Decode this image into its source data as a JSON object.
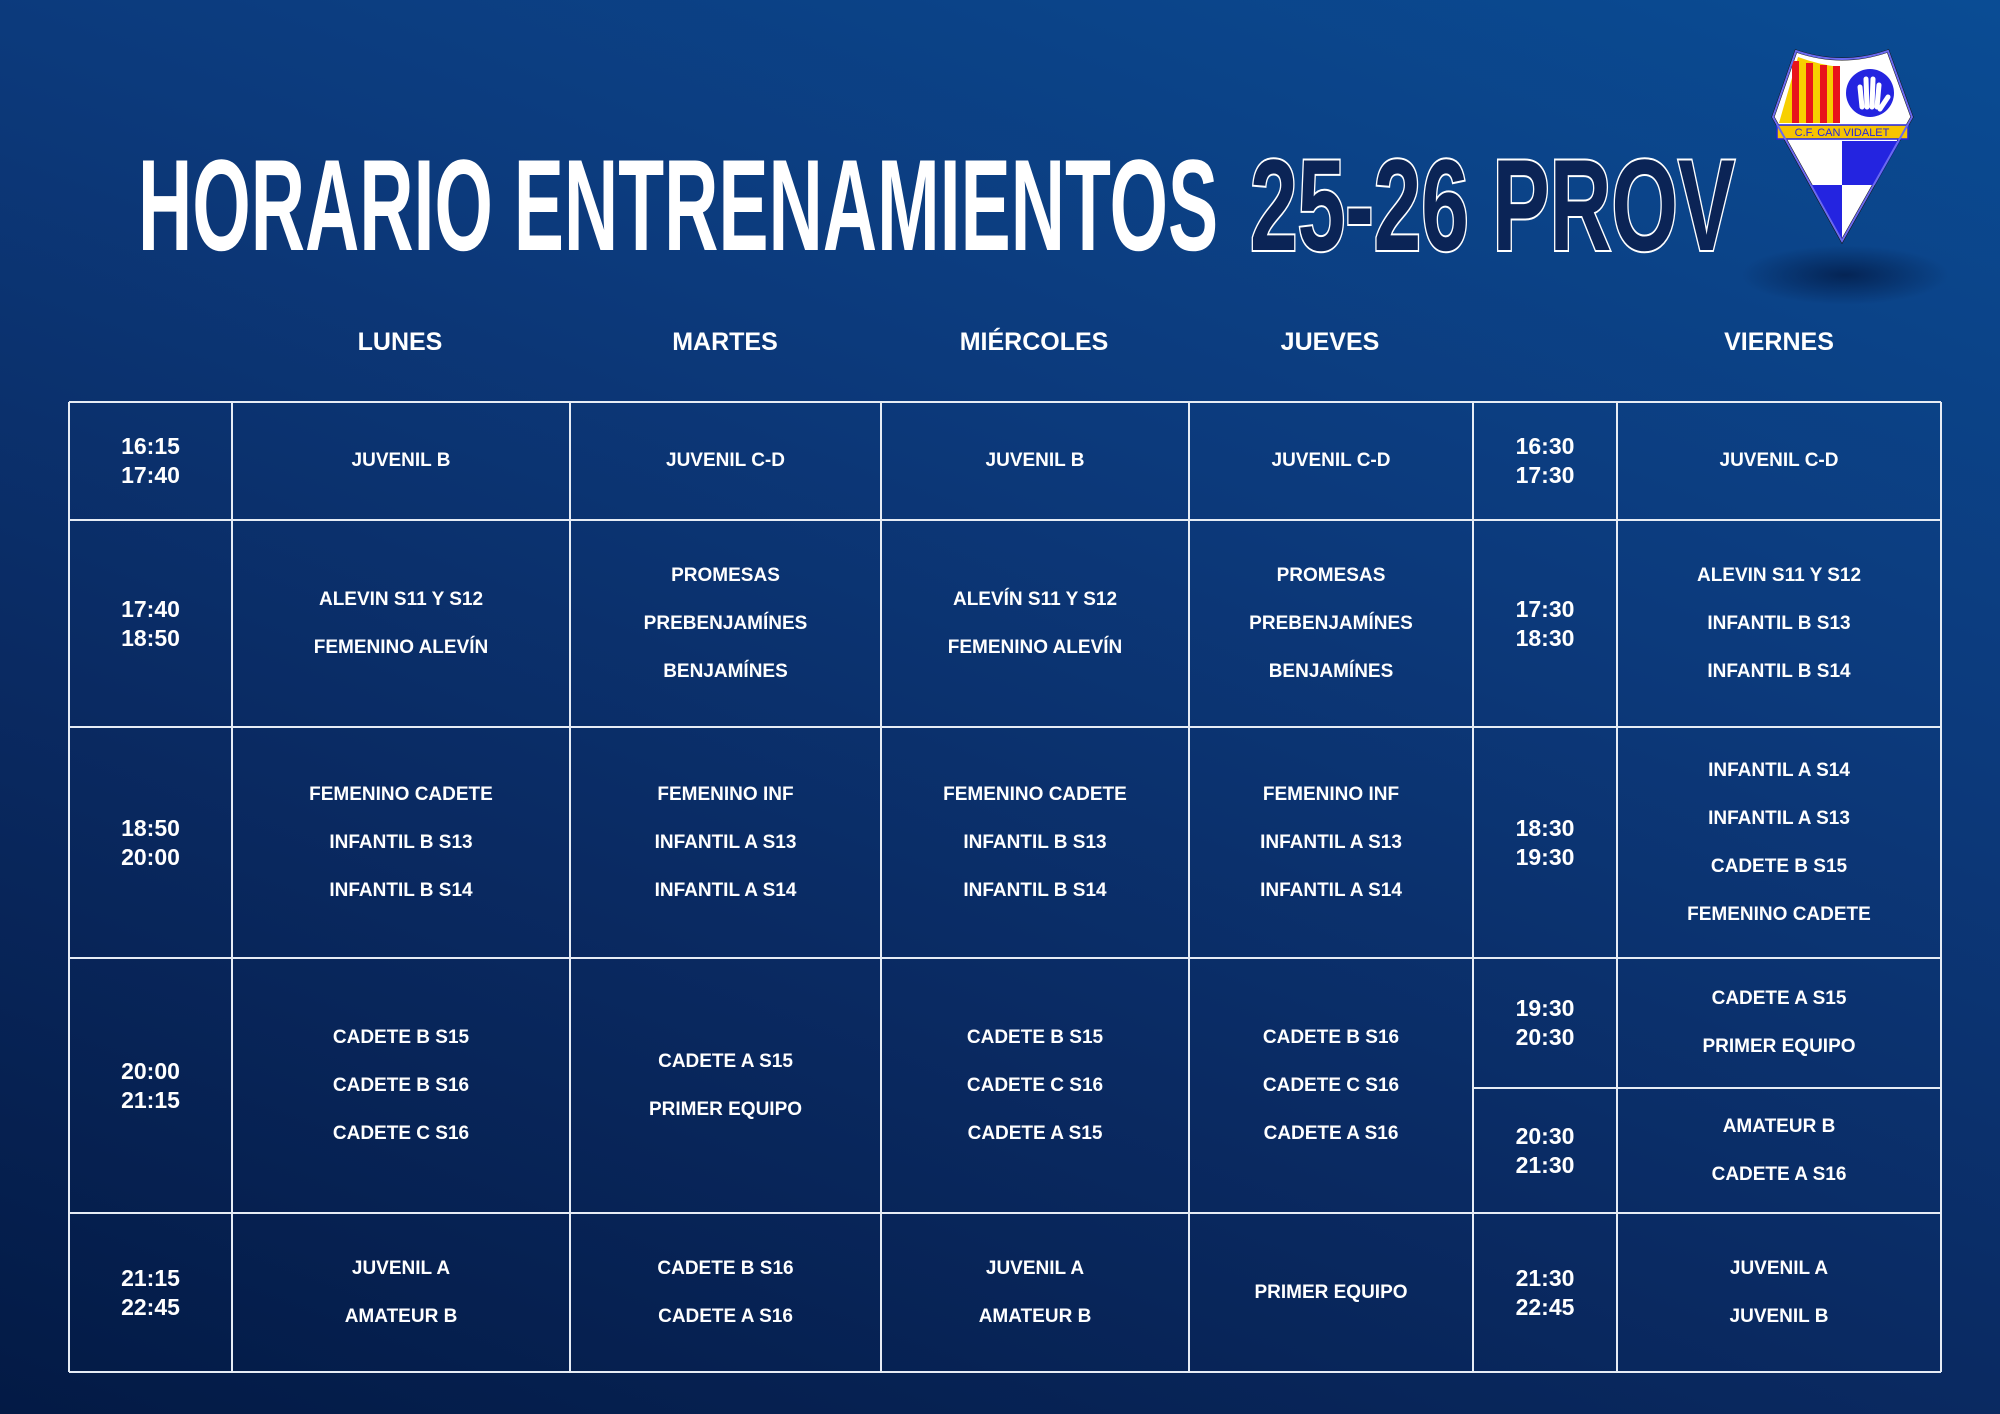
{
  "title": {
    "filled": "HORARIO ENTRENAMIENTOS",
    "outlined": "25-26 PROV"
  },
  "logo": {
    "text": "C.F. CAN VIDALET"
  },
  "colors": {
    "background_dark": "#031a45",
    "background_light": "#0a4c94",
    "title_outline_fill": "#0b2456",
    "grid_line": "#e6ecf5"
  },
  "days": [
    "LUNES",
    "MARTES",
    "MIÉRCOLES",
    "JUEVES",
    "VIERNES"
  ],
  "rows": [
    {
      "time": [
        "16:15",
        "17:40"
      ],
      "lunes": [
        "JUVENIL B"
      ],
      "martes": [
        "JUVENIL C-D"
      ],
      "miercoles": [
        "JUVENIL B"
      ],
      "jueves": [
        "JUVENIL C-D"
      ]
    },
    {
      "time": [
        "17:40",
        "18:50"
      ],
      "lunes": [
        "ALEVIN S11 Y S12",
        "FEMENINO ALEVÍN"
      ],
      "martes": [
        "PROMESAS",
        "PREBENJAMÍNES",
        "BENJAMÍNES"
      ],
      "miercoles": [
        "ALEVÍN S11 Y S12",
        "FEMENINO ALEVÍN"
      ],
      "jueves": [
        "PROMESAS",
        "PREBENJAMÍNES",
        "BENJAMÍNES"
      ]
    },
    {
      "time": [
        "18:50",
        "20:00"
      ],
      "lunes": [
        "FEMENINO CADETE",
        "INFANTIL B S13",
        "INFANTIL B S14"
      ],
      "martes": [
        "FEMENINO INF",
        "INFANTIL A S13",
        "INFANTIL A S14"
      ],
      "miercoles": [
        "FEMENINO CADETE",
        "INFANTIL B S13",
        "INFANTIL B S14"
      ],
      "jueves": [
        "FEMENINO INF",
        "INFANTIL A S13",
        "INFANTIL A S14"
      ]
    },
    {
      "time": [
        "20:00",
        "21:15"
      ],
      "lunes": [
        "CADETE B S15",
        "CADETE B S16",
        "CADETE C S16"
      ],
      "martes": [
        "CADETE A S15",
        "PRIMER EQUIPO"
      ],
      "miercoles": [
        "CADETE B S15",
        "CADETE C S16",
        "CADETE A S15"
      ],
      "jueves": [
        "CADETE B S16",
        "CADETE C S16",
        "CADETE A S16"
      ]
    },
    {
      "time": [
        "21:15",
        "22:45"
      ],
      "lunes": [
        "JUVENIL A",
        "AMATEUR B"
      ],
      "martes": [
        "CADETE B S16",
        "CADETE A S16"
      ],
      "miercoles": [
        "JUVENIL A",
        "AMATEUR B"
      ],
      "jueves": [
        "PRIMER EQUIPO"
      ]
    }
  ],
  "viernes": [
    {
      "time": [
        "16:30",
        "17:30"
      ],
      "teams": [
        "JUVENIL C-D"
      ]
    },
    {
      "time": [
        "17:30",
        "18:30"
      ],
      "teams": [
        "ALEVIN S11 Y S12",
        "INFANTIL B S13",
        "INFANTIL B S14"
      ]
    },
    {
      "time": [
        "18:30",
        "19:30"
      ],
      "teams": [
        "INFANTIL A S14",
        "INFANTIL A S13",
        "CADETE B S15",
        "FEMENINO CADETE"
      ]
    },
    {
      "time": [
        "19:30",
        "20:30"
      ],
      "teams": [
        "CADETE A S15",
        "PRIMER EQUIPO"
      ]
    },
    {
      "time": [
        "20:30",
        "21:30"
      ],
      "teams": [
        "AMATEUR B",
        "CADETE A S16"
      ]
    },
    {
      "time": [
        "21:30",
        "22:45"
      ],
      "teams": [
        "JUVENIL A",
        "JUVENIL B"
      ]
    }
  ]
}
